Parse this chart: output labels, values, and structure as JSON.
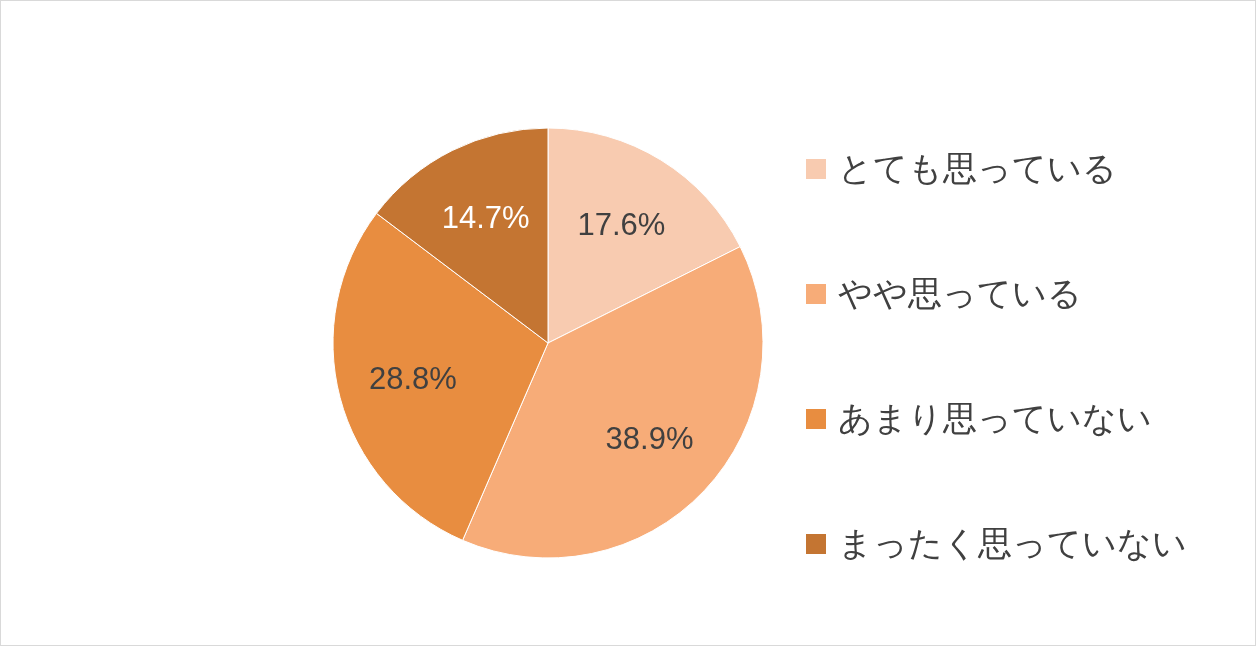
{
  "chart_data": {
    "type": "pie",
    "categories": [
      "とても思っている",
      "やや思っている",
      "あまり思っていない",
      "まったく思っていない"
    ],
    "values": [
      17.6,
      38.9,
      28.8,
      14.7
    ],
    "value_labels": [
      "17.6%",
      "38.9%",
      "28.8%",
      "14.7%"
    ],
    "colors": [
      "#f8cbb0",
      "#f7ac78",
      "#e88d40",
      "#c47532"
    ],
    "legend": "right"
  }
}
